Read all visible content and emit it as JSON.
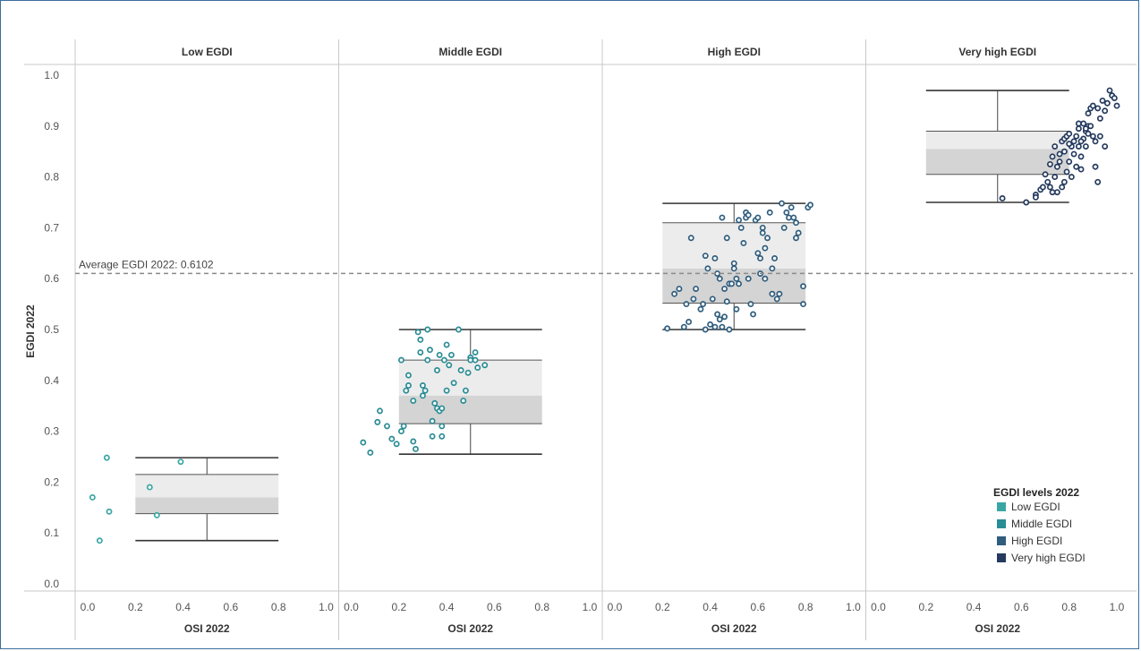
{
  "chart_data": {
    "type": "scatter",
    "subtype": "box-and-scatter, faceted",
    "ylabel": "EGDI 2022",
    "xlabel": "OSI 2022",
    "ylim": [
      0,
      1
    ],
    "xlim": [
      0,
      1
    ],
    "y_ticks": [
      "0.0",
      "0.1",
      "0.2",
      "0.3",
      "0.4",
      "0.5",
      "0.6",
      "0.7",
      "0.8",
      "0.9",
      "1.0"
    ],
    "x_ticks": [
      "0.0",
      "0.2",
      "0.4",
      "0.6",
      "0.8",
      "1.0"
    ],
    "reference_line": {
      "label": "Average EGDI 2022: 0.6102",
      "value": 0.6102
    },
    "legend": {
      "title": "EGDI  levels 2022",
      "position": "bottom-right",
      "items": [
        {
          "label": "Low EGDI",
          "color": "#3aa6a3"
        },
        {
          "label": "Middle EGDI",
          "color": "#2a8c95"
        },
        {
          "label": "High EGDI",
          "color": "#2f5d7e"
        },
        {
          "label": "Very high EGDI",
          "color": "#253a5e"
        }
      ]
    },
    "panels": [
      {
        "title": "Low EGDI",
        "color": "#3aa6a3",
        "box": {
          "whisker_low": 0.085,
          "q1": 0.138,
          "median": 0.17,
          "q3": 0.215,
          "whisker_high": 0.248,
          "center_osi": 0.5
        },
        "points": [
          [
            0.02,
            0.17
          ],
          [
            0.05,
            0.085
          ],
          [
            0.08,
            0.248
          ],
          [
            0.09,
            0.142
          ],
          [
            0.26,
            0.19
          ],
          [
            0.29,
            0.135
          ],
          [
            0.39,
            0.24
          ]
        ]
      },
      {
        "title": "Middle EGDI",
        "color": "#2a8c95",
        "box": {
          "whisker_low": 0.255,
          "q1": 0.315,
          "median": 0.37,
          "q3": 0.44,
          "whisker_high": 0.5,
          "center_osi": 0.5
        },
        "points": [
          [
            0.05,
            0.278
          ],
          [
            0.08,
            0.258
          ],
          [
            0.11,
            0.318
          ],
          [
            0.12,
            0.34
          ],
          [
            0.15,
            0.31
          ],
          [
            0.17,
            0.285
          ],
          [
            0.19,
            0.275
          ],
          [
            0.21,
            0.3
          ],
          [
            0.22,
            0.31
          ],
          [
            0.21,
            0.44
          ],
          [
            0.23,
            0.38
          ],
          [
            0.24,
            0.41
          ],
          [
            0.24,
            0.39
          ],
          [
            0.26,
            0.36
          ],
          [
            0.26,
            0.28
          ],
          [
            0.27,
            0.265
          ],
          [
            0.28,
            0.495
          ],
          [
            0.29,
            0.455
          ],
          [
            0.29,
            0.48
          ],
          [
            0.3,
            0.37
          ],
          [
            0.3,
            0.39
          ],
          [
            0.31,
            0.38
          ],
          [
            0.32,
            0.5
          ],
          [
            0.32,
            0.44
          ],
          [
            0.33,
            0.46
          ],
          [
            0.34,
            0.32
          ],
          [
            0.34,
            0.29
          ],
          [
            0.35,
            0.355
          ],
          [
            0.36,
            0.345
          ],
          [
            0.36,
            0.42
          ],
          [
            0.37,
            0.45
          ],
          [
            0.37,
            0.34
          ],
          [
            0.38,
            0.29
          ],
          [
            0.38,
            0.345
          ],
          [
            0.38,
            0.31
          ],
          [
            0.39,
            0.44
          ],
          [
            0.4,
            0.47
          ],
          [
            0.4,
            0.38
          ],
          [
            0.41,
            0.43
          ],
          [
            0.42,
            0.45
          ],
          [
            0.43,
            0.395
          ],
          [
            0.45,
            0.5
          ],
          [
            0.46,
            0.42
          ],
          [
            0.47,
            0.36
          ],
          [
            0.48,
            0.38
          ],
          [
            0.49,
            0.415
          ],
          [
            0.5,
            0.445
          ],
          [
            0.5,
            0.44
          ],
          [
            0.52,
            0.44
          ],
          [
            0.52,
            0.455
          ],
          [
            0.53,
            0.425
          ],
          [
            0.56,
            0.43
          ]
        ]
      },
      {
        "title": "High EGDI",
        "color": "#2f5d7e",
        "box": {
          "whisker_low": 0.5,
          "q1": 0.552,
          "median": 0.62,
          "q3": 0.71,
          "whisker_high": 0.748,
          "center_osi": 0.5
        },
        "points": [
          [
            0.22,
            0.502
          ],
          [
            0.25,
            0.57
          ],
          [
            0.27,
            0.58
          ],
          [
            0.29,
            0.505
          ],
          [
            0.3,
            0.55
          ],
          [
            0.31,
            0.515
          ],
          [
            0.32,
            0.68
          ],
          [
            0.33,
            0.56
          ],
          [
            0.34,
            0.58
          ],
          [
            0.36,
            0.54
          ],
          [
            0.37,
            0.55
          ],
          [
            0.38,
            0.645
          ],
          [
            0.38,
            0.5
          ],
          [
            0.39,
            0.62
          ],
          [
            0.4,
            0.51
          ],
          [
            0.41,
            0.56
          ],
          [
            0.42,
            0.64
          ],
          [
            0.42,
            0.505
          ],
          [
            0.43,
            0.53
          ],
          [
            0.43,
            0.61
          ],
          [
            0.44,
            0.6
          ],
          [
            0.44,
            0.52
          ],
          [
            0.45,
            0.505
          ],
          [
            0.45,
            0.72
          ],
          [
            0.46,
            0.525
          ],
          [
            0.46,
            0.58
          ],
          [
            0.47,
            0.68
          ],
          [
            0.47,
            0.555
          ],
          [
            0.48,
            0.59
          ],
          [
            0.48,
            0.5
          ],
          [
            0.49,
            0.59
          ],
          [
            0.5,
            0.63
          ],
          [
            0.5,
            0.62
          ],
          [
            0.51,
            0.6
          ],
          [
            0.51,
            0.54
          ],
          [
            0.52,
            0.715
          ],
          [
            0.52,
            0.59
          ],
          [
            0.53,
            0.7
          ],
          [
            0.54,
            0.67
          ],
          [
            0.55,
            0.72
          ],
          [
            0.55,
            0.73
          ],
          [
            0.56,
            0.725
          ],
          [
            0.56,
            0.6
          ],
          [
            0.57,
            0.55
          ],
          [
            0.58,
            0.53
          ],
          [
            0.59,
            0.715
          ],
          [
            0.6,
            0.72
          ],
          [
            0.6,
            0.65
          ],
          [
            0.61,
            0.64
          ],
          [
            0.61,
            0.61
          ],
          [
            0.62,
            0.7
          ],
          [
            0.62,
            0.69
          ],
          [
            0.63,
            0.66
          ],
          [
            0.63,
            0.6
          ],
          [
            0.64,
            0.68
          ],
          [
            0.65,
            0.73
          ],
          [
            0.66,
            0.62
          ],
          [
            0.66,
            0.57
          ],
          [
            0.67,
            0.64
          ],
          [
            0.68,
            0.56
          ],
          [
            0.69,
            0.57
          ],
          [
            0.7,
            0.748
          ],
          [
            0.71,
            0.7
          ],
          [
            0.72,
            0.73
          ],
          [
            0.73,
            0.72
          ],
          [
            0.74,
            0.74
          ],
          [
            0.75,
            0.72
          ],
          [
            0.76,
            0.71
          ],
          [
            0.76,
            0.68
          ],
          [
            0.77,
            0.69
          ],
          [
            0.79,
            0.55
          ],
          [
            0.79,
            0.585
          ],
          [
            0.81,
            0.74
          ],
          [
            0.82,
            0.745
          ]
        ]
      },
      {
        "title": "Very high EGDI",
        "color": "#253a5e",
        "box": {
          "whisker_low": 0.75,
          "q1": 0.805,
          "median": 0.855,
          "q3": 0.89,
          "whisker_high": 0.97,
          "center_osi": 0.5
        },
        "points": [
          [
            0.52,
            0.758
          ],
          [
            0.62,
            0.75
          ],
          [
            0.66,
            0.765
          ],
          [
            0.66,
            0.76
          ],
          [
            0.68,
            0.775
          ],
          [
            0.69,
            0.78
          ],
          [
            0.7,
            0.805
          ],
          [
            0.71,
            0.79
          ],
          [
            0.72,
            0.78
          ],
          [
            0.72,
            0.825
          ],
          [
            0.73,
            0.77
          ],
          [
            0.73,
            0.84
          ],
          [
            0.74,
            0.86
          ],
          [
            0.74,
            0.8
          ],
          [
            0.75,
            0.77
          ],
          [
            0.75,
            0.82
          ],
          [
            0.76,
            0.83
          ],
          [
            0.76,
            0.845
          ],
          [
            0.77,
            0.87
          ],
          [
            0.77,
            0.78
          ],
          [
            0.78,
            0.85
          ],
          [
            0.78,
            0.875
          ],
          [
            0.79,
            0.88
          ],
          [
            0.79,
            0.81
          ],
          [
            0.8,
            0.83
          ],
          [
            0.8,
            0.885
          ],
          [
            0.81,
            0.86
          ],
          [
            0.81,
            0.8
          ],
          [
            0.82,
            0.87
          ],
          [
            0.82,
            0.845
          ],
          [
            0.83,
            0.82
          ],
          [
            0.83,
            0.88
          ],
          [
            0.84,
            0.86
          ],
          [
            0.84,
            0.895
          ],
          [
            0.85,
            0.84
          ],
          [
            0.85,
            0.815
          ],
          [
            0.86,
            0.905
          ],
          [
            0.86,
            0.875
          ],
          [
            0.87,
            0.86
          ],
          [
            0.87,
            0.89
          ],
          [
            0.88,
            0.9
          ],
          [
            0.88,
            0.925
          ],
          [
            0.89,
            0.935
          ],
          [
            0.89,
            0.9
          ],
          [
            0.9,
            0.94
          ],
          [
            0.9,
            0.88
          ],
          [
            0.91,
            0.87
          ],
          [
            0.91,
            0.82
          ],
          [
            0.92,
            0.935
          ],
          [
            0.92,
            0.79
          ],
          [
            0.93,
            0.88
          ],
          [
            0.93,
            0.915
          ],
          [
            0.94,
            0.95
          ],
          [
            0.95,
            0.86
          ],
          [
            0.95,
            0.93
          ],
          [
            0.96,
            0.945
          ],
          [
            0.97,
            0.97
          ],
          [
            0.98,
            0.96
          ],
          [
            0.99,
            0.955
          ],
          [
            1.0,
            0.94
          ],
          [
            0.87,
            0.895
          ],
          [
            0.88,
            0.885
          ],
          [
            0.85,
            0.87
          ],
          [
            0.84,
            0.905
          ],
          [
            0.8,
            0.865
          ],
          [
            0.78,
            0.79
          ]
        ]
      }
    ]
  }
}
